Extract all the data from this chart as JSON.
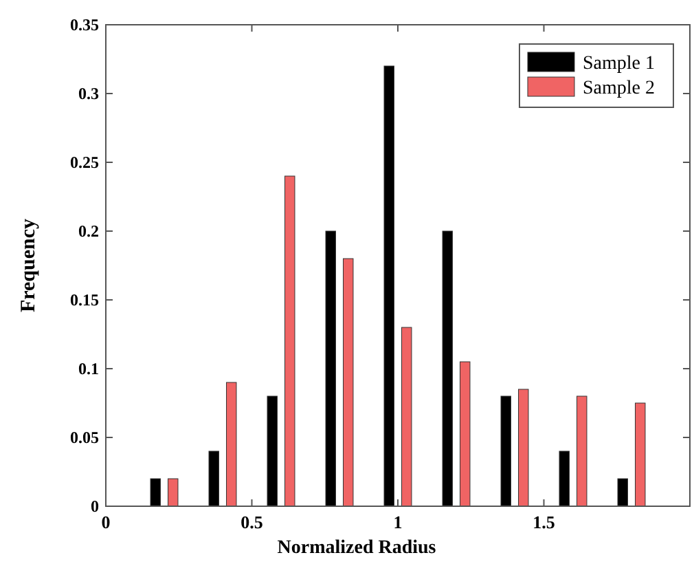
{
  "chart_data": {
    "type": "bar",
    "xlabel": "Normalized Radius",
    "ylabel": "Frequency",
    "x": [
      0.2,
      0.4,
      0.6,
      0.8,
      1,
      1.2,
      1.4,
      1.6,
      1.8
    ],
    "series": [
      {
        "name": "Sample 1",
        "color": "#000000",
        "values": [
          0.02,
          0.04,
          0.08,
          0.2,
          0.32,
          0.2,
          0.08,
          0.04,
          0.02
        ]
      },
      {
        "name": "Sample 2",
        "color": "#f06464",
        "values": [
          0.02,
          0.09,
          0.24,
          0.18,
          0.13,
          0.105,
          0.085,
          0.08,
          0.075
        ]
      }
    ],
    "xlim": [
      0,
      2
    ],
    "xticks": [
      0,
      0.5,
      1,
      1.5
    ],
    "ylim": [
      0,
      0.35
    ],
    "yticks": [
      0,
      0.05,
      0.1,
      0.15,
      0.2,
      0.25,
      0.3,
      0.35
    ],
    "legend": "top right",
    "grid": false
  }
}
